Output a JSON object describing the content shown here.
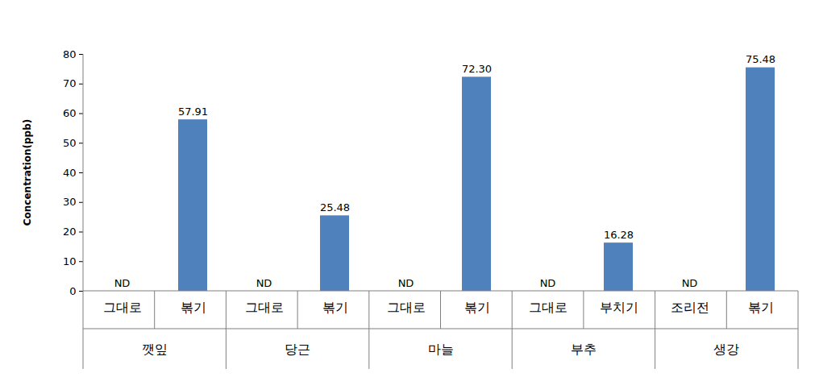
{
  "chart_data": {
    "type": "bar",
    "categories": [
      "그대로",
      "볶기",
      "그대로",
      "볶기",
      "그대로",
      "볶기",
      "그대로",
      "부치기",
      "조리전",
      "볶기"
    ],
    "groups": [
      "깻잎",
      "깻잎",
      "당근",
      "당근",
      "마늘",
      "마늘",
      "부추",
      "부추",
      "생강",
      "생강"
    ],
    "values": [
      null,
      57.91,
      null,
      25.48,
      null,
      72.3,
      null,
      16.28,
      null,
      75.48
    ],
    "value_labels": [
      "ND",
      "57.91",
      "ND",
      "25.48",
      "ND",
      "72.30",
      "ND",
      "16.28",
      "ND",
      "75.48"
    ],
    "color": "#4f81bd",
    "y_label": "Concentration(ppb)",
    "ylim": [
      0,
      80
    ],
    "yticks": [
      0,
      10,
      20,
      30,
      40,
      50,
      60,
      70,
      80
    ],
    "grid": false,
    "data_labels": true
  }
}
